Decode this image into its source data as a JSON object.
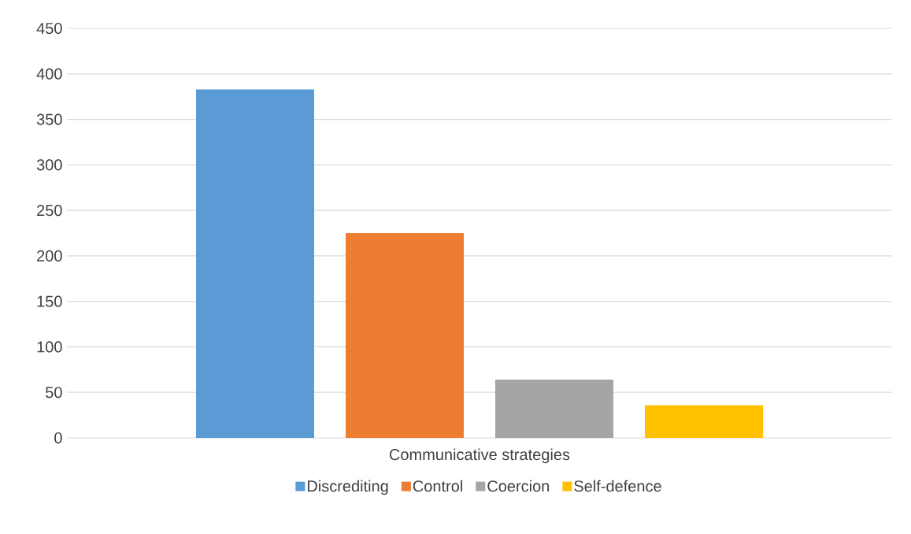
{
  "chart_data": {
    "type": "bar",
    "categories": [
      "Communicative strategies"
    ],
    "series": [
      {
        "name": "Discrediting",
        "color": "#5b9bd5",
        "values": [
          383
        ]
      },
      {
        "name": "Control",
        "color": "#ed7d31",
        "values": [
          225
        ]
      },
      {
        "name": "Coercion",
        "color": "#a5a5a5",
        "values": [
          64
        ]
      },
      {
        "name": "Self-defence",
        "color": "#ffc000",
        "values": [
          36
        ]
      }
    ],
    "ylim": [
      0,
      450
    ],
    "yticks": [
      0,
      50,
      100,
      150,
      200,
      250,
      300,
      350,
      400,
      450
    ],
    "grid": "y",
    "legend": "bottom"
  }
}
